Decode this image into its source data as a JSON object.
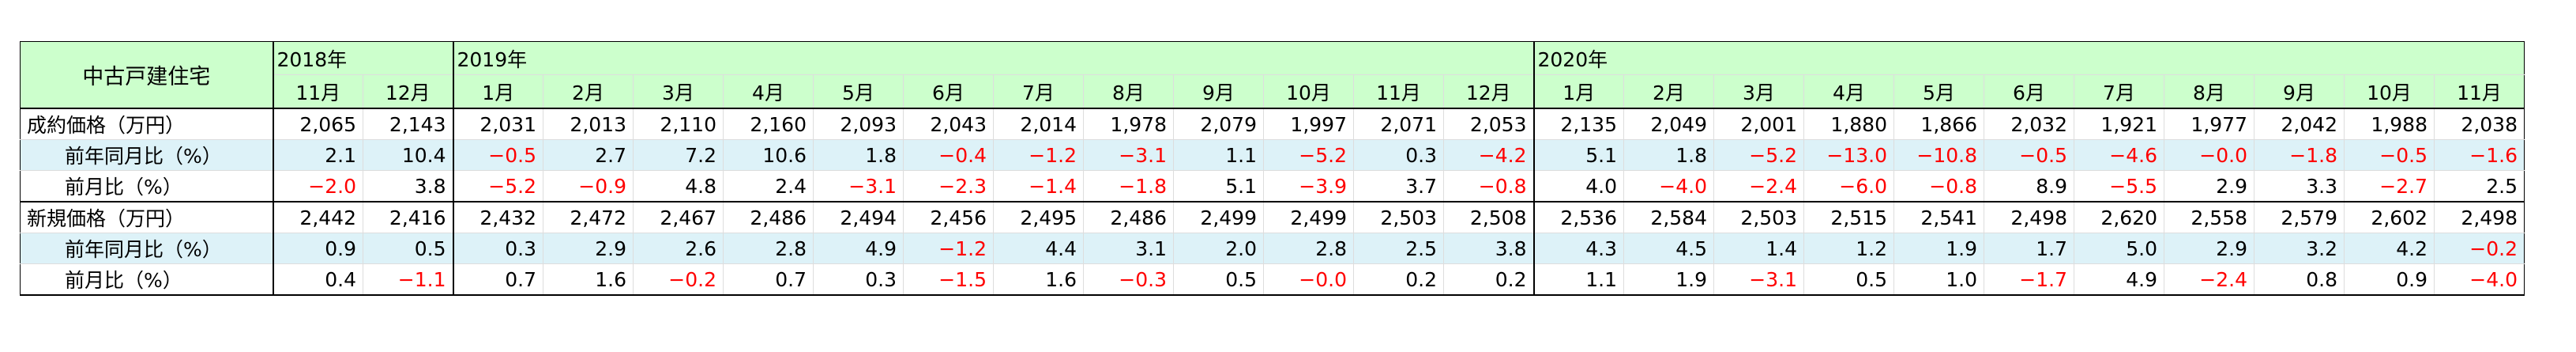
{
  "table": {
    "title": "中古戸建住宅",
    "years": [
      {
        "label": "2018年",
        "months": [
          "11月",
          "12月"
        ]
      },
      {
        "label": "2019年",
        "months": [
          "1月",
          "2月",
          "3月",
          "4月",
          "5月",
          "6月",
          "7月",
          "8月",
          "9月",
          "10月",
          "11月",
          "12月"
        ]
      },
      {
        "label": "2020年",
        "months": [
          "1月",
          "2月",
          "3月",
          "4月",
          "5月",
          "6月",
          "7月",
          "8月",
          "9月",
          "10月",
          "11月"
        ]
      }
    ],
    "rows": [
      {
        "label": "成約価格（万円）",
        "kind": "price",
        "values": [
          "2,065",
          "2,143",
          "2,031",
          "2,013",
          "2,110",
          "2,160",
          "2,093",
          "2,043",
          "2,014",
          "1,978",
          "2,079",
          "1,997",
          "2,071",
          "2,053",
          "2,135",
          "2,049",
          "2,001",
          "1,880",
          "1,866",
          "2,032",
          "1,921",
          "1,977",
          "2,042",
          "1,988",
          "2,038"
        ]
      },
      {
        "label": "前年同月比（%）",
        "kind": "yoy",
        "values": [
          "2.1",
          "10.4",
          "−0.5",
          "2.7",
          "7.2",
          "10.6",
          "1.8",
          "−0.4",
          "−1.2",
          "−3.1",
          "1.1",
          "−5.2",
          "0.3",
          "−4.2",
          "5.1",
          "1.8",
          "−5.2",
          "−13.0",
          "−10.8",
          "−0.5",
          "−4.6",
          "−0.0",
          "−1.8",
          "−0.5",
          "−1.6"
        ]
      },
      {
        "label": "前月比（%）",
        "kind": "mom",
        "values": [
          "−2.0",
          "3.8",
          "−5.2",
          "−0.9",
          "4.8",
          "2.4",
          "−3.1",
          "−2.3",
          "−1.4",
          "−1.8",
          "5.1",
          "−3.9",
          "3.7",
          "−0.8",
          "4.0",
          "−4.0",
          "−2.4",
          "−6.0",
          "−0.8",
          "8.9",
          "−5.5",
          "2.9",
          "3.3",
          "−2.7",
          "2.5"
        ]
      },
      {
        "label": "新規価格（万円）",
        "kind": "price",
        "values": [
          "2,442",
          "2,416",
          "2,432",
          "2,472",
          "2,467",
          "2,486",
          "2,494",
          "2,456",
          "2,495",
          "2,486",
          "2,499",
          "2,499",
          "2,503",
          "2,508",
          "2,536",
          "2,584",
          "2,503",
          "2,515",
          "2,541",
          "2,498",
          "2,620",
          "2,558",
          "2,579",
          "2,602",
          "2,498"
        ]
      },
      {
        "label": "前年同月比（%）",
        "kind": "yoy",
        "values": [
          "0.9",
          "0.5",
          "0.3",
          "2.9",
          "2.6",
          "2.8",
          "4.9",
          "−1.2",
          "4.4",
          "3.1",
          "2.0",
          "2.8",
          "2.5",
          "3.8",
          "4.3",
          "4.5",
          "1.4",
          "1.2",
          "1.9",
          "1.7",
          "5.0",
          "2.9",
          "3.2",
          "4.2",
          "−0.2"
        ]
      },
      {
        "label": "前月比（%）",
        "kind": "mom",
        "values": [
          "0.4",
          "−1.1",
          "0.7",
          "1.6",
          "−0.2",
          "0.7",
          "0.3",
          "−1.5",
          "1.6",
          "−0.3",
          "0.5",
          "−0.0",
          "0.2",
          "0.2",
          "1.1",
          "1.9",
          "−3.1",
          "0.5",
          "1.0",
          "−1.7",
          "4.9",
          "−2.4",
          "0.8",
          "0.9",
          "−4.0"
        ]
      }
    ]
  }
}
